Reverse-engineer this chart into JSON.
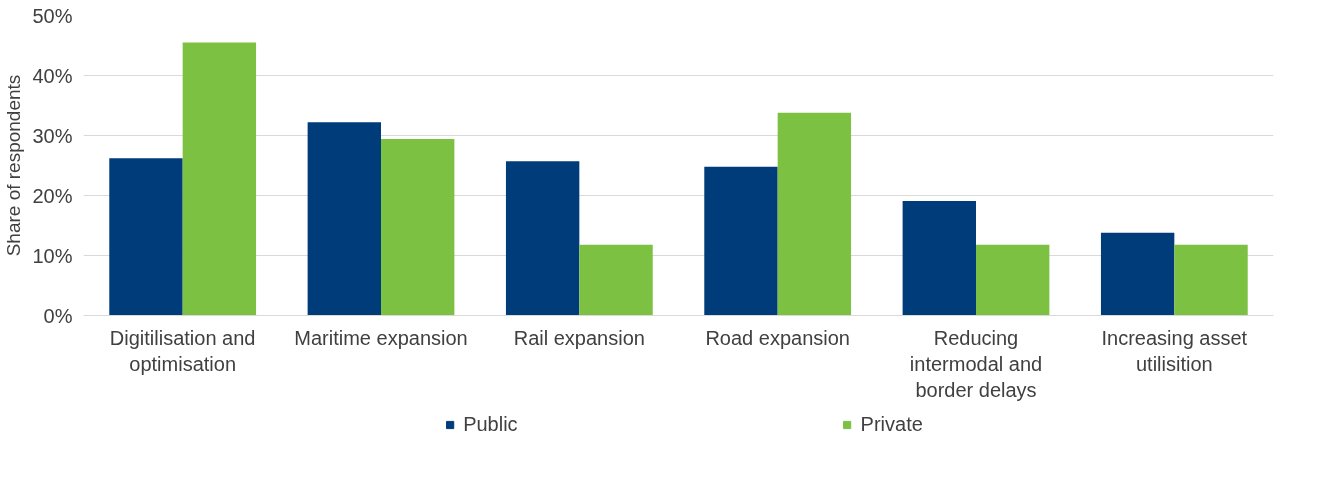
{
  "chart_data": {
    "type": "bar",
    "ylabel": "Share of respondents",
    "categories": [
      "Digitilisation and optimisation",
      "Maritime expansion",
      "Rail expansion",
      "Road expansion",
      "Reducing intermodal and border delays",
      "Increasing asset utilisition"
    ],
    "series": [
      {
        "name": "Public",
        "color": "#003b7a",
        "values": [
          26.2,
          32.2,
          25.7,
          24.8,
          19.1,
          13.8
        ]
      },
      {
        "name": "Private",
        "color": "#7dc142",
        "values": [
          45.5,
          29.4,
          11.8,
          33.8,
          11.8,
          11.8
        ]
      }
    ],
    "ylim": [
      0,
      50
    ],
    "yticks": [
      {
        "value": 0,
        "label": "0%"
      },
      {
        "value": 10,
        "label": "10%"
      },
      {
        "value": 20,
        "label": "20%"
      },
      {
        "value": 30,
        "label": "30%"
      },
      {
        "value": 40,
        "label": "40%"
      },
      {
        "value": 50,
        "label": "50%"
      }
    ],
    "grid": "y",
    "legend": "bottom"
  }
}
